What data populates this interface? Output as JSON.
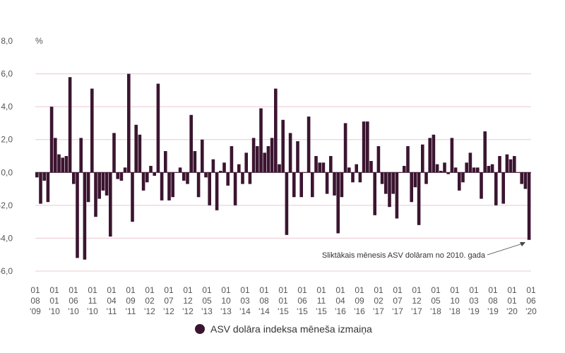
{
  "colors": {
    "bar": "#3b1530",
    "grid": "#e9c8d2",
    "axis": "#888888"
  },
  "chart_data": {
    "type": "bar",
    "unit_label": "%",
    "ylim": [
      -6,
      8
    ],
    "yticks": [
      "8,0",
      "6,0",
      "4,0",
      "2,0",
      "0,0",
      "-2,0",
      "-4,0",
      "-6,0"
    ],
    "grid": true,
    "xtick_labels": [
      [
        "01",
        "08",
        "'09"
      ],
      [
        "01",
        "01",
        "'10"
      ],
      [
        "01",
        "06",
        "'10"
      ],
      [
        "01",
        "11",
        "'10"
      ],
      [
        "01",
        "04",
        "'11"
      ],
      [
        "01",
        "09",
        "'11"
      ],
      [
        "01",
        "02",
        "'12"
      ],
      [
        "01",
        "07",
        "'12"
      ],
      [
        "01",
        "12",
        "'12"
      ],
      [
        "01",
        "05",
        "'13"
      ],
      [
        "01",
        "10",
        "'13"
      ],
      [
        "01",
        "03",
        "'14"
      ],
      [
        "01",
        "08",
        "'14"
      ],
      [
        "01",
        "01",
        "'15"
      ],
      [
        "01",
        "06",
        "'15"
      ],
      [
        "01",
        "11",
        "'15"
      ],
      [
        "01",
        "04",
        "'16"
      ],
      [
        "01",
        "09",
        "'16"
      ],
      [
        "01",
        "02",
        "'17"
      ],
      [
        "01",
        "07",
        "'17"
      ],
      [
        "01",
        "12",
        "'17"
      ],
      [
        "01",
        "05",
        "'18"
      ],
      [
        "01",
        "10",
        "'18"
      ],
      [
        "01",
        "03",
        "'19"
      ],
      [
        "01",
        "08",
        "'19"
      ],
      [
        "01",
        "01",
        "'20"
      ],
      [
        "01",
        "06",
        "'20"
      ]
    ],
    "values": [
      -0.3,
      -1.9,
      -0.5,
      -1.8,
      4.0,
      2.1,
      1.1,
      0.9,
      1.0,
      5.8,
      -0.7,
      -5.2,
      2.1,
      -5.3,
      -1.8,
      5.1,
      -2.7,
      -1.6,
      -1.1,
      -1.4,
      -3.9,
      2.4,
      -0.4,
      -0.5,
      0.3,
      6.0,
      -3.0,
      2.9,
      2.3,
      -1.1,
      -0.6,
      0.4,
      -0.2,
      5.4,
      -1.7,
      1.3,
      -1.7,
      -1.5,
      0.0,
      0.3,
      -0.5,
      -0.7,
      3.5,
      1.3,
      -1.5,
      2.0,
      -0.3,
      -2.0,
      0.8,
      -2.3,
      0.1,
      0.6,
      -0.8,
      1.6,
      -2.0,
      0.5,
      -0.7,
      1.2,
      -0.7,
      2.1,
      1.6,
      3.9,
      1.2,
      1.6,
      2.1,
      5.1,
      0.5,
      3.2,
      -3.8,
      2.4,
      -1.5,
      1.9,
      -1.5,
      0.0,
      3.4,
      -1.5,
      1.0,
      0.6,
      0.6,
      -1.3,
      1.0,
      -1.4,
      -3.7,
      -1.5,
      3.0,
      0.3,
      -0.6,
      0.5,
      -0.6,
      3.1,
      3.1,
      0.7,
      -2.6,
      1.6,
      -0.7,
      -1.3,
      -2.1,
      -1.3,
      -2.8,
      0.0,
      0.4,
      1.6,
      -1.8,
      -0.9,
      -3.2,
      1.7,
      -0.7,
      2.1,
      2.3,
      0.5,
      0.1,
      0.6,
      -0.1,
      2.1,
      0.3,
      -1.1,
      -0.6,
      0.6,
      1.2,
      0.3,
      0.3,
      -1.6,
      2.5,
      0.4,
      0.5,
      -2.0,
      1.0,
      -1.9,
      1.1,
      0.8,
      1.0,
      0.0,
      -0.7,
      -1.0,
      -4.1
    ],
    "annotation": "Sliktākais mēnesis ASV dolāram no 2010. gada",
    "legend": "ASV dolāra indeksa mēneša izmaiņa"
  }
}
